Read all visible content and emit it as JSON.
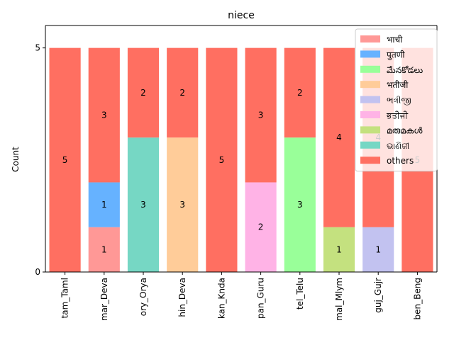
{
  "chart_data": {
    "type": "bar",
    "stacked": true,
    "title": "niece",
    "xlabel": "",
    "ylabel": "Count",
    "ylim": [
      0,
      5.5
    ],
    "yticks": [
      0,
      5
    ],
    "categories": [
      "tam_Taml",
      "mar_Deva",
      "ory_Orya",
      "hin_Deva",
      "kan_Knda",
      "pan_Guru",
      "tel_Telu",
      "mal_Mlym",
      "guj_Gujr",
      "ben_Beng"
    ],
    "series": [
      {
        "name": "भाची",
        "color": "#ff9896",
        "values": [
          0,
          1,
          0,
          0,
          0,
          0,
          0,
          0,
          0,
          0
        ]
      },
      {
        "name": "पुतणी",
        "color": "#66b2ff",
        "values": [
          0,
          1,
          0,
          0,
          0,
          0,
          0,
          0,
          0,
          0
        ]
      },
      {
        "name": "మేనకోడలు",
        "color": "#99ff99",
        "values": [
          0,
          0,
          0,
          0,
          0,
          0,
          3,
          0,
          0,
          0
        ]
      },
      {
        "name": "भतीजी",
        "color": "#ffcc99",
        "values": [
          0,
          0,
          0,
          3,
          0,
          0,
          0,
          0,
          0,
          0
        ]
      },
      {
        "name": "ભત્રીજી",
        "color": "#c2c2f0",
        "values": [
          0,
          0,
          0,
          0,
          0,
          0,
          0,
          0,
          1,
          0
        ]
      },
      {
        "name": "ਭਤੀਜੀ",
        "color": "#ffb3e6",
        "values": [
          0,
          0,
          0,
          0,
          0,
          2,
          0,
          0,
          0,
          0
        ]
      },
      {
        "name": "മരുമകൾ",
        "color": "#c4e17f",
        "values": [
          0,
          0,
          0,
          0,
          0,
          0,
          0,
          1,
          0,
          0
        ]
      },
      {
        "name": "ଭାଣିଜୀ",
        "color": "#76d7c4",
        "values": [
          0,
          0,
          3,
          0,
          0,
          0,
          0,
          0,
          0,
          0
        ]
      },
      {
        "name": "others",
        "color": "#ff6f61",
        "values": [
          5,
          3,
          2,
          2,
          5,
          3,
          2,
          4,
          4,
          5
        ]
      }
    ],
    "legend": "top-right",
    "grid": false
  }
}
